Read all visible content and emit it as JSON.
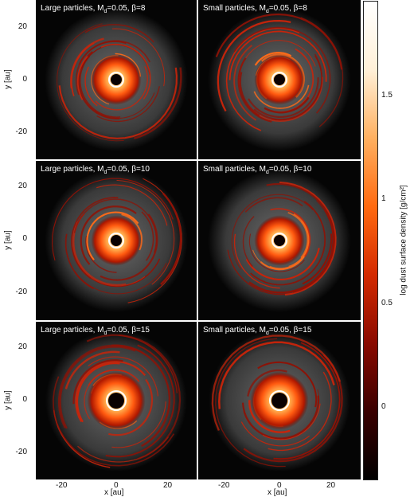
{
  "panels": [
    {
      "size_label": "Large particles, M",
      "sub": "d",
      "rest": "=0.05, β=8"
    },
    {
      "size_label": "Small particles, M",
      "sub": "d",
      "rest": "=0.05, β=8"
    },
    {
      "size_label": "Large particles, M",
      "sub": "d",
      "rest": "=0.05, β=10"
    },
    {
      "size_label": "Small particles, M",
      "sub": "d",
      "rest": "=0.05, β=10"
    },
    {
      "size_label": "Large particles, M",
      "sub": "d",
      "rest": "=0.05, β=15"
    },
    {
      "size_label": "Small particles, M",
      "sub": "d",
      "rest": "=0.05, β=15"
    }
  ],
  "axes": {
    "xlabel": "x [au]",
    "ylabel": "y [au]",
    "x_ticks": [
      "-20",
      "0",
      "20"
    ],
    "y_ticks": [
      "20",
      "0",
      "-20"
    ],
    "xlim": [
      -32,
      32
    ],
    "ylim": [
      -32,
      32
    ]
  },
  "colorbar": {
    "label": "log dust surface density [g/cm²]",
    "ticks": [
      "1.5",
      "1",
      "0.5",
      "0"
    ],
    "tick_values": [
      1.5,
      1,
      0.5,
      0
    ],
    "range": [
      -0.3,
      1.95
    ],
    "colors": [
      "#000000",
      "#3a0000",
      "#8a0a00",
      "#d42a00",
      "#ff6a10",
      "#ffb060",
      "#fff0d8",
      "#ffffff"
    ]
  }
}
